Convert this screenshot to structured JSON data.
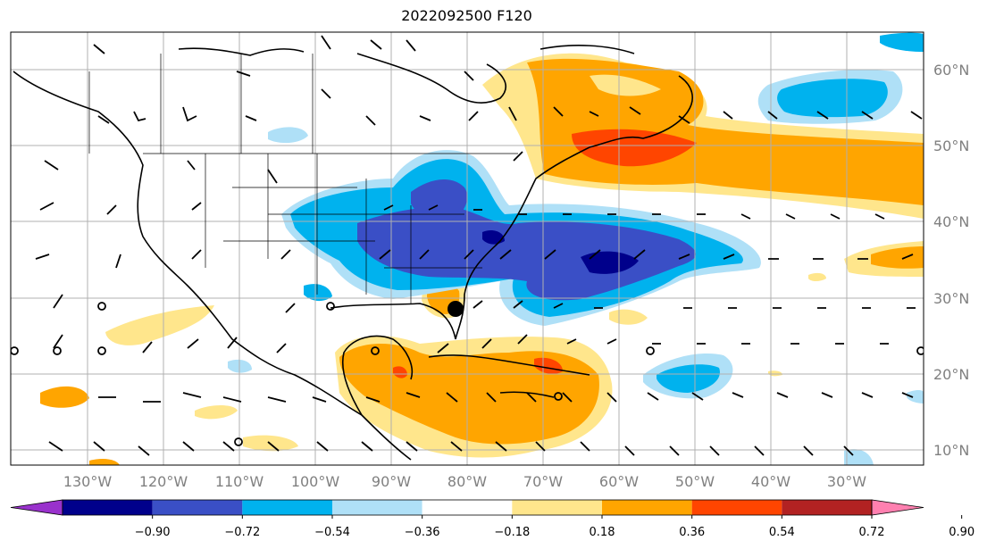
{
  "title": "2022092500 F120",
  "map": {
    "lat_labels": [
      "60°N",
      "50°N",
      "40°N",
      "30°N",
      "20°N",
      "10°N"
    ],
    "lon_labels": [
      "130°W",
      "120°W",
      "110°W",
      "100°W",
      "90°W",
      "80°W",
      "70°W",
      "60°W",
      "50°W",
      "40°W",
      "30°W"
    ],
    "grid": true,
    "coastline_color": "#000000",
    "station_marker": "black dot near Florida"
  },
  "colorbar": {
    "colors": [
      "#9932cc",
      "#00008b",
      "#3a4fc6",
      "#00b2ee",
      "#afe0f7",
      "#ffffff",
      "#ffe68c",
      "#ffa500",
      "#ff4500",
      "#b22222",
      "#ff80b0"
    ],
    "tick_labels": [
      "−0.90",
      "−0.72",
      "−0.54",
      "−0.36",
      "−0.18",
      "0.18",
      "0.36",
      "0.54",
      "0.72",
      "0.90"
    ],
    "extend": "both"
  }
}
